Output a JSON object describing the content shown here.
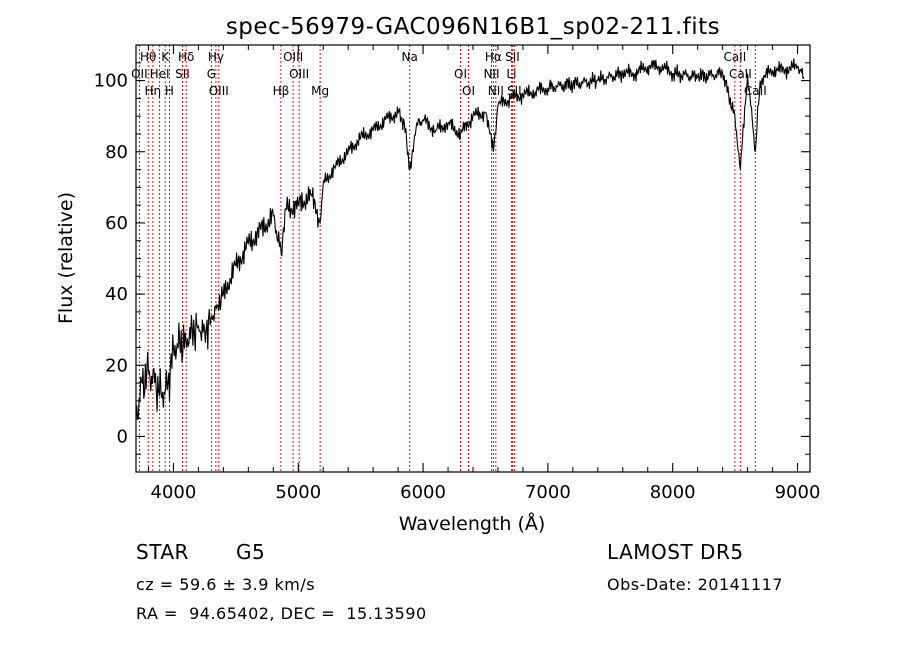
{
  "chart_data": {
    "type": "line",
    "title": "spec-56979-GAC096N16B1_sp02-211.fits",
    "xlabel": "Wavelength (Å)",
    "ylabel": "Flux (relative)",
    "xlim": [
      3700,
      9100
    ],
    "ylim": [
      -10,
      110
    ],
    "xticks": [
      4000,
      5000,
      6000,
      7000,
      8000,
      9000
    ],
    "yticks": [
      0,
      20,
      40,
      60,
      80,
      100
    ],
    "series": [
      {
        "x": [
          3700,
          3750,
          3800,
          3850,
          3900,
          3950,
          4000,
          4050,
          4100,
          4150,
          4200,
          4250,
          4300,
          4350,
          4400,
          4500,
          4600,
          4700,
          4800,
          4862,
          4900,
          5000,
          5100,
          5175,
          5200,
          5300,
          5400,
          5500,
          5600,
          5700,
          5800,
          5850,
          5893,
          5950,
          6000,
          6100,
          6200,
          6300,
          6400,
          6500,
          6563,
          6600,
          6700,
          6800,
          6900,
          7000,
          7200,
          7400,
          7600,
          7700,
          7800,
          7900,
          8000,
          8200,
          8400,
          8498,
          8542,
          8600,
          8662,
          8700,
          8800,
          8900,
          9000,
          9050
        ],
        "y": [
          5,
          15,
          18,
          15,
          12,
          13,
          25,
          26,
          27,
          30,
          31,
          30,
          33,
          37,
          40,
          48,
          54,
          58,
          62,
          52,
          64,
          65,
          68,
          60,
          71,
          76,
          80,
          84,
          86,
          89,
          91,
          88,
          75,
          88,
          89,
          86,
          88,
          85,
          90,
          91,
          80,
          93,
          95,
          96,
          97,
          98,
          99,
          100,
          102,
          102,
          104,
          104,
          102,
          101,
          102,
          90,
          75,
          102,
          80,
          100,
          103,
          103,
          104,
          101
        ]
      }
    ],
    "lines": [
      "Hθ",
      "OII",
      "Hη",
      "K",
      "HeI",
      "H",
      "Hδ",
      "SII",
      "OIII",
      "Hγ",
      "G",
      "Hβ",
      "OIII",
      "OIII",
      "Mg",
      "Na",
      "OI",
      "OI",
      "Hα",
      "NII",
      "NII",
      "SII",
      "Li",
      "SII",
      "CaII",
      "CaII",
      "CaII"
    ],
    "line_wavelengths": [
      3798,
      3727,
      3835,
      3934,
      3889,
      3968,
      4102,
      4072,
      4363,
      4340,
      4304,
      4861,
      4959,
      5007,
      5175,
      5893,
      6300,
      6364,
      6563,
      6548,
      6583,
      6716,
      6708,
      6731,
      8498,
      8542,
      8662
    ]
  },
  "info": {
    "object_class": "STAR",
    "subclass": "G5",
    "survey": "LAMOST DR5",
    "cz": "cz = 59.6 ± 3.9 km/s",
    "obs_date": "Obs-Date: 20141117",
    "coords": "RA =  94.65402, DEC =  15.13590"
  },
  "colors": {
    "spectrum": "#000000",
    "line_markers": "#cc0000",
    "axes": "#000000"
  }
}
